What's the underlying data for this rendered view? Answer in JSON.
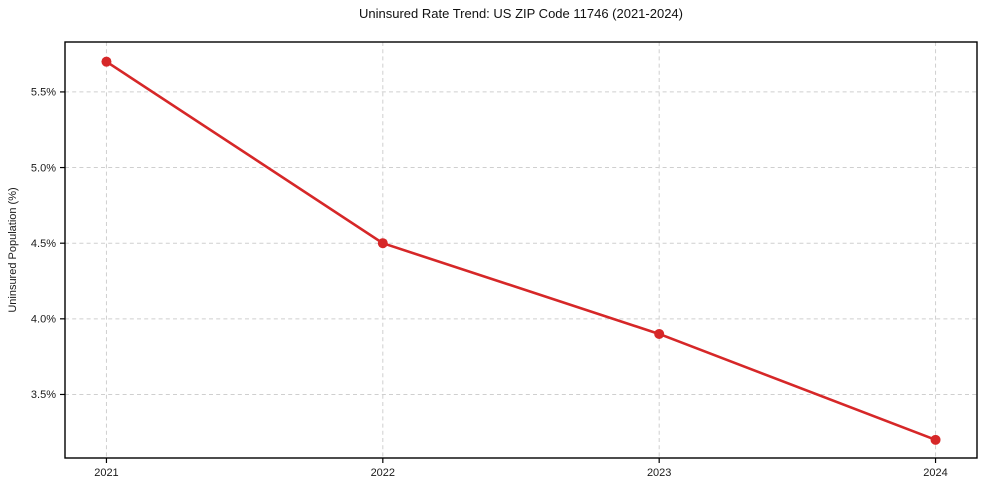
{
  "chart_data": {
    "type": "line",
    "title": "Uninsured Rate Trend: US ZIP Code 11746 (2021-2024)",
    "xlabel": "",
    "ylabel": "Uninsured Population (%)",
    "x": [
      2021,
      2022,
      2023,
      2024
    ],
    "categories": [
      "2021",
      "2022",
      "2023",
      "2024"
    ],
    "values": [
      5.7,
      4.5,
      3.9,
      3.2
    ],
    "yticks": [
      3.5,
      4.0,
      4.5,
      5.0,
      5.5
    ],
    "ytick_labels": [
      "3.5%",
      "4.0%",
      "4.5%",
      "5.0%",
      "5.5%"
    ],
    "xlim": [
      2020.85,
      2024.15
    ],
    "ylim": [
      3.08,
      5.83
    ],
    "grid": true,
    "grid_style": "dashed",
    "legend_position": "none",
    "line_color": "#d62728",
    "marker": "circle",
    "grid_color": "#cfcfcf",
    "axis_color": "#000000",
    "text_color": "#1a1a1a",
    "background_color": "#ffffff"
  }
}
